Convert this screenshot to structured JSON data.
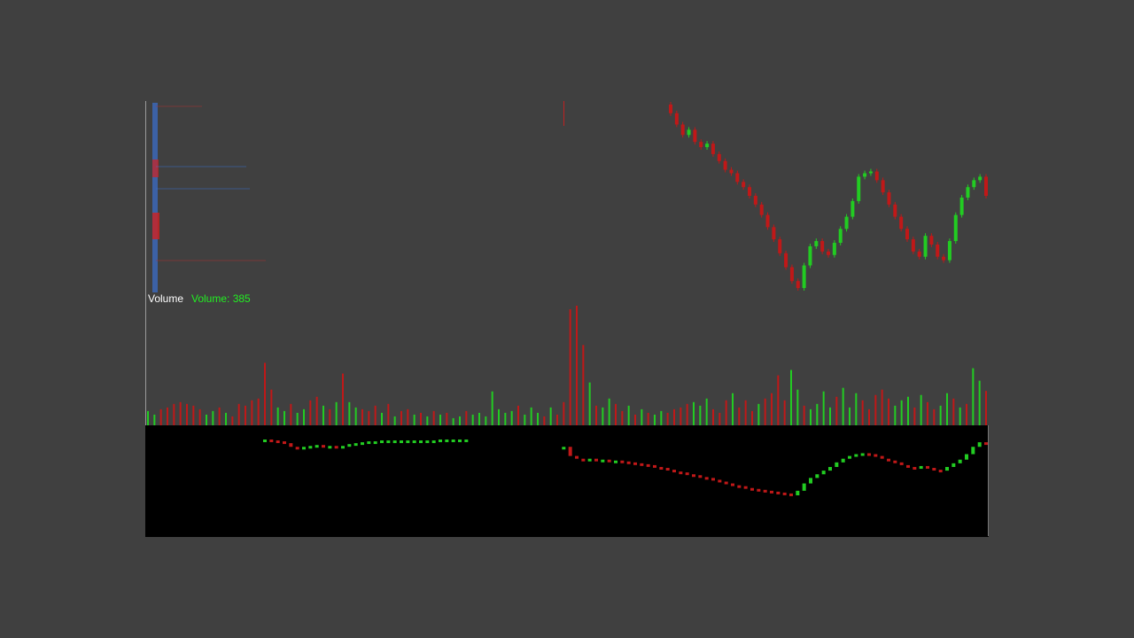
{
  "panel": {
    "volume_title": "Volume",
    "volume_label": "Volume: 385"
  },
  "price": {
    "open": [
      215,
      205,
      192,
      180,
      186,
      172,
      166,
      170,
      158,
      150,
      140,
      136,
      126,
      120,
      110,
      100,
      88,
      74,
      60,
      44,
      28,
      12,
      4,
      30,
      52,
      58,
      46,
      42,
      56,
      72,
      86,
      104,
      132,
      136,
      138,
      128,
      114,
      100,
      86,
      72,
      60,
      46,
      40,
      64,
      54,
      40,
      36,
      58,
      88,
      108,
      120,
      128,
      132
    ],
    "high": [
      218,
      208,
      195,
      189,
      189,
      175,
      173,
      173,
      161,
      153,
      143,
      139,
      129,
      123,
      113,
      103,
      91,
      77,
      63,
      47,
      31,
      15,
      33,
      55,
      61,
      61,
      49,
      59,
      75,
      89,
      107,
      135,
      139,
      141,
      141,
      131,
      117,
      103,
      89,
      75,
      63,
      49,
      67,
      67,
      57,
      43,
      61,
      91,
      111,
      123,
      131,
      135,
      135
    ],
    "low": [
      202,
      189,
      177,
      177,
      169,
      163,
      163,
      155,
      147,
      137,
      133,
      123,
      117,
      107,
      97,
      85,
      71,
      57,
      41,
      25,
      9,
      1,
      1,
      27,
      49,
      43,
      39,
      39,
      53,
      69,
      83,
      101,
      129,
      133,
      125,
      111,
      97,
      83,
      69,
      57,
      43,
      37,
      37,
      51,
      37,
      33,
      33,
      55,
      85,
      105,
      117,
      125,
      107
    ],
    "close": [
      205,
      192,
      180,
      186,
      172,
      166,
      170,
      158,
      150,
      140,
      136,
      126,
      120,
      110,
      100,
      88,
      74,
      60,
      44,
      28,
      12,
      4,
      30,
      52,
      58,
      46,
      42,
      56,
      72,
      86,
      104,
      132,
      136,
      138,
      128,
      114,
      100,
      86,
      72,
      60,
      46,
      40,
      64,
      54,
      40,
      36,
      58,
      88,
      108,
      120,
      128,
      132,
      110
    ]
  },
  "volume": {
    "values": [
      160,
      120,
      180,
      200,
      240,
      260,
      240,
      220,
      180,
      120,
      160,
      200,
      140,
      100,
      240,
      220,
      280,
      300,
      700,
      400,
      200,
      160,
      240,
      140,
      180,
      280,
      320,
      220,
      180,
      260,
      580,
      260,
      200,
      180,
      160,
      220,
      140,
      240,
      100,
      160,
      180,
      120,
      140,
      100,
      160,
      120,
      140,
      80,
      100,
      160,
      120,
      140,
      100,
      380,
      180,
      140,
      160,
      220,
      120,
      200,
      140,
      100,
      200,
      120,
      260,
      1300,
      1340,
      900,
      480,
      220,
      200,
      300,
      240,
      160,
      220,
      120,
      180,
      140,
      120,
      160,
      140,
      180,
      200,
      240,
      260,
      220,
      300,
      180,
      140,
      280,
      360,
      200,
      280,
      160,
      240,
      300,
      360,
      560,
      280,
      620,
      400,
      220,
      180,
      240,
      380,
      200,
      320,
      420,
      200,
      360,
      280,
      180,
      340,
      400,
      300,
      220,
      280,
      320,
      200,
      340,
      260,
      180,
      220,
      360,
      300,
      200,
      240,
      640,
      500,
      385
    ],
    "up": [
      1,
      1,
      0,
      0,
      0,
      0,
      0,
      0,
      0,
      1,
      1,
      0,
      1,
      0,
      0,
      0,
      0,
      0,
      0,
      0,
      1,
      1,
      0,
      1,
      1,
      0,
      0,
      1,
      0,
      1,
      0,
      1,
      1,
      0,
      0,
      0,
      1,
      0,
      1,
      0,
      0,
      1,
      0,
      1,
      0,
      1,
      0,
      1,
      1,
      0,
      1,
      1,
      1,
      1,
      1,
      1,
      1,
      0,
      1,
      1,
      1,
      0,
      1,
      0,
      0,
      0,
      0,
      0,
      1,
      0,
      1,
      1,
      0,
      0,
      1,
      0,
      1,
      0,
      1,
      1,
      0,
      0,
      0,
      0,
      1,
      1,
      1,
      0,
      0,
      0,
      1,
      0,
      0,
      0,
      1,
      0,
      0,
      0,
      0,
      1,
      1,
      0,
      1,
      1,
      1,
      1,
      0,
      1,
      1,
      1,
      0,
      0,
      0,
      0,
      0,
      1,
      1,
      1,
      0,
      1,
      0,
      0,
      1,
      1,
      0,
      1,
      0,
      1,
      1,
      0
    ]
  },
  "lower": {
    "close": [
      null,
      null,
      null,
      null,
      null,
      null,
      null,
      null,
      null,
      null,
      null,
      null,
      null,
      null,
      null,
      null,
      null,
      null,
      108,
      107,
      106,
      104,
      100,
      99,
      100,
      101,
      102,
      101,
      101,
      100,
      101,
      103,
      104,
      105,
      106,
      106,
      107,
      107,
      107,
      107,
      107,
      107,
      107,
      107,
      107,
      108,
      108,
      108,
      108,
      108,
      null,
      null,
      null,
      null,
      null,
      null,
      null,
      null,
      null,
      null,
      null,
      null,
      null,
      null,
      100,
      90,
      87,
      86,
      87,
      86,
      86,
      85,
      85,
      84,
      83,
      82,
      81,
      80,
      78,
      77,
      75,
      73,
      72,
      70,
      69,
      67,
      66,
      64,
      62,
      60,
      58,
      57,
      55,
      54,
      53,
      52,
      51,
      50,
      49,
      47,
      52,
      60,
      66,
      70,
      74,
      78,
      83,
      87,
      90,
      92,
      93,
      92,
      90,
      87,
      85,
      83,
      80,
      78,
      76,
      79,
      77,
      75,
      74,
      78,
      82,
      86,
      92,
      100,
      105,
      103
    ]
  }
}
